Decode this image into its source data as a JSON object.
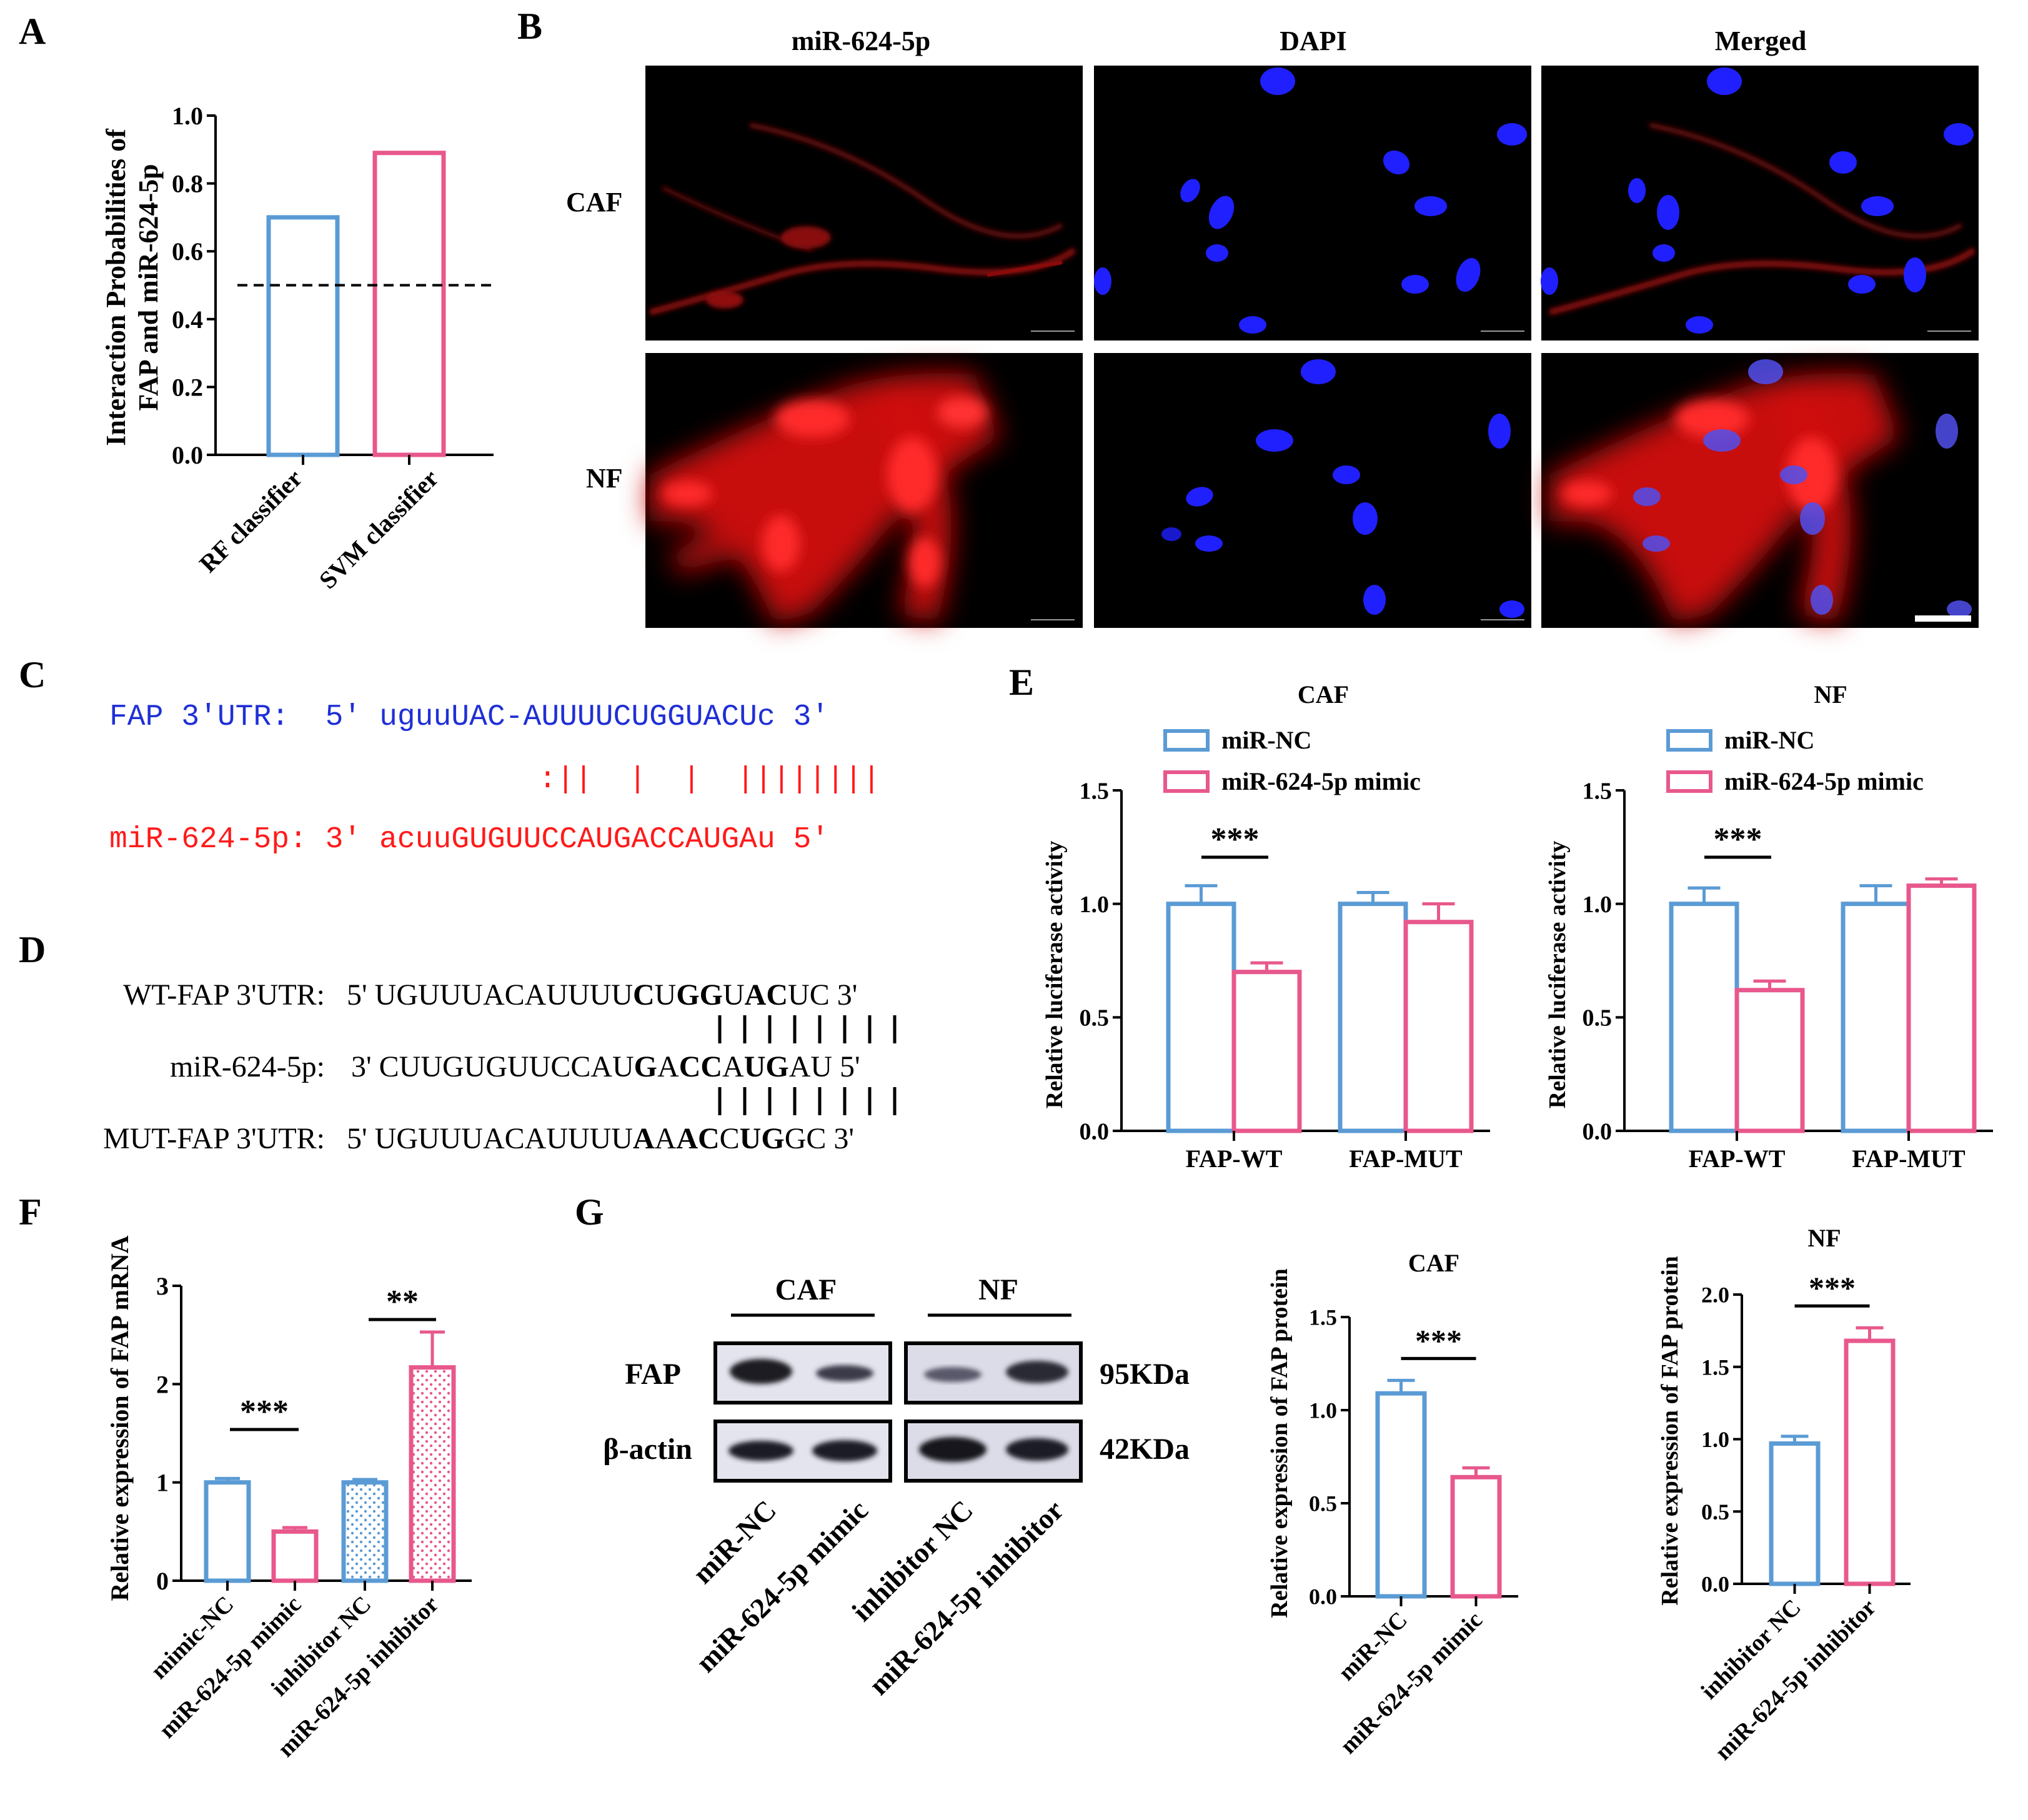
{
  "panels": {
    "A": "A",
    "B": "B",
    "C": "C",
    "D": "D",
    "E": "E",
    "F": "F",
    "G": "G"
  },
  "colors": {
    "blue": "#5b9bd5",
    "pink": "#e8588c",
    "dapi": "#2222ff",
    "mir": "#ff2020"
  },
  "panelA": {
    "ylabel_line1": "Interaction Probabilities of",
    "ylabel_line2": "FAP and miR-624-5p",
    "chart_data": {
      "type": "bar",
      "categories": [
        "RF classifier",
        "SVM classifier"
      ],
      "values": [
        0.7,
        0.89
      ],
      "ylim": [
        0,
        1.0
      ],
      "yticks": [
        "0.0",
        "0.2",
        "0.4",
        "0.6",
        "0.8",
        "1.0"
      ],
      "threshold": 0.5
    }
  },
  "panelB": {
    "columns": [
      "miR-624-5p",
      "DAPI",
      "Merged"
    ],
    "rows": [
      "CAF",
      "NF"
    ]
  },
  "panelC": {
    "line1": "FAP 3'UTR:  5' uguuUAC-AUUUUCUGGUACUc 3'",
    "pairs": ":||  |  |  ||||||||",
    "line2": "miR-624-5p: 3' acuuGUGUUCCAUGACCAUGAu 5'"
  },
  "panelD": {
    "wt_label": "WT-FAP 3'UTR:",
    "wt_pre": "5' UGUUUACAUUUU",
    "wt_seq": [
      [
        "C",
        true
      ],
      [
        "U",
        false
      ],
      [
        "G",
        true
      ],
      [
        "G",
        true
      ],
      [
        "U",
        false
      ],
      [
        "A",
        true
      ],
      [
        "C",
        true
      ],
      [
        "U",
        false
      ]
    ],
    "wt_post": "C 3'",
    "mir_label": "miR-624-5p:",
    "mir_pre": "3' CUUGUGUUCCAU",
    "mir_seq": [
      [
        "G",
        true
      ],
      [
        "A",
        false
      ],
      [
        "C",
        true
      ],
      [
        "C",
        true
      ],
      [
        "A",
        false
      ],
      [
        "U",
        true
      ],
      [
        "G",
        true
      ],
      [
        "A",
        false
      ]
    ],
    "mir_post": "U 5'",
    "mut_label": "MUT-FAP 3'UTR:",
    "mut_pre": "5' UGUUUACAUUUU",
    "mut_seq": [
      [
        "A",
        true
      ],
      [
        "A",
        false
      ],
      [
        "A",
        true
      ],
      [
        "C",
        true
      ],
      [
        "C",
        false
      ],
      [
        "U",
        true
      ],
      [
        "G",
        true
      ],
      [
        "G",
        false
      ]
    ],
    "mut_post": "C 3'"
  },
  "panelE": {
    "ylabel": "Relative luciferase activity",
    "legend": [
      "miR-NC",
      "miR-624-5p mimic"
    ],
    "significance": "***",
    "yticks": [
      "0.0",
      "0.5",
      "1.0",
      "1.5"
    ],
    "charts": [
      {
        "title": "CAF",
        "chart_data": {
          "type": "bar",
          "categories": [
            "FAP-WT",
            "FAP-MUT"
          ],
          "ylim": [
            0,
            1.5
          ],
          "series": [
            {
              "name": "miR-NC",
              "values": [
                1.0,
                1.0
              ],
              "errors": [
                0.08,
                0.05
              ]
            },
            {
              "name": "miR-624-5p mimic",
              "values": [
                0.7,
                0.92
              ],
              "errors": [
                0.04,
                0.08
              ]
            }
          ]
        }
      },
      {
        "title": "NF",
        "chart_data": {
          "type": "bar",
          "categories": [
            "FAP-WT",
            "FAP-MUT"
          ],
          "ylim": [
            0,
            1.5
          ],
          "series": [
            {
              "name": "miR-NC",
              "values": [
                1.0,
                1.0
              ],
              "errors": [
                0.07,
                0.08
              ]
            },
            {
              "name": "miR-624-5p mimic",
              "values": [
                0.62,
                1.08
              ],
              "errors": [
                0.04,
                0.03
              ]
            }
          ]
        }
      }
    ]
  },
  "panelF": {
    "ylabel": "Relative expression of FAP mRNA",
    "chart_data": {
      "type": "bar",
      "categories": [
        "mimic-NC",
        "miR-624-5p mimic",
        "inhibitor NC",
        "miR-624-5p inhibitor"
      ],
      "values": [
        1.0,
        0.5,
        1.0,
        2.17
      ],
      "errors": [
        0.04,
        0.04,
        0.03,
        0.36
      ],
      "ylim": [
        0,
        3
      ],
      "yticks": [
        "0",
        "1",
        "2",
        "3"
      ],
      "significance": [
        "***",
        "**"
      ]
    }
  },
  "panelG": {
    "blot": {
      "groups": [
        "CAF",
        "NF"
      ],
      "rows": [
        "FAP",
        "β-actin"
      ],
      "sizes": [
        "95KDa",
        "42KDa"
      ],
      "lanes": [
        "miR-NC",
        "miR-624-5p mimic",
        "inhibitor NC",
        "miR-624-5p inhibitor"
      ]
    },
    "ylabel": "Relative expression of FAP protein",
    "charts": [
      {
        "title": "CAF",
        "chart_data": {
          "type": "bar",
          "categories": [
            "miR-NC",
            "miR-624-5p mimic"
          ],
          "values": [
            1.09,
            0.64
          ],
          "errors": [
            0.07,
            0.05
          ],
          "ylim": [
            0,
            1.5
          ],
          "yticks": [
            "0.0",
            "0.5",
            "1.0",
            "1.5"
          ],
          "significance": "***"
        }
      },
      {
        "title": "NF",
        "chart_data": {
          "type": "bar",
          "categories": [
            "inhibitor NC",
            "miR-624-5p inhibitor"
          ],
          "values": [
            0.97,
            1.68
          ],
          "errors": [
            0.05,
            0.09
          ],
          "ylim": [
            0,
            2.0
          ],
          "yticks": [
            "0.0",
            "0.5",
            "1.0",
            "1.5",
            "2.0"
          ],
          "significance": "***"
        }
      }
    ]
  }
}
